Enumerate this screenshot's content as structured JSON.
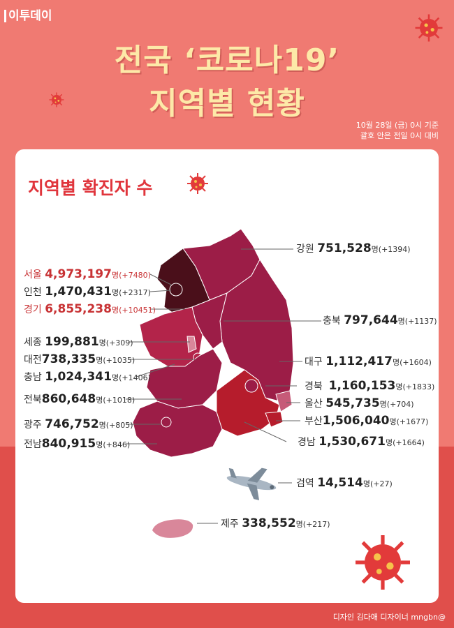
{
  "brand": "이투데이",
  "title_line1": "전국 ‘코로나19’",
  "title_line2": "지역별 현황",
  "date_line1": "10월 28일 (금) 0시 기준",
  "date_line2": "괄호 안은 전일 0시 대비",
  "section_title": "지역별 확진자 수",
  "credit": "디자인 김다애 디자이너 mngbn@",
  "unit": "명",
  "regions": [
    {
      "name": "강원",
      "count": "751,528",
      "change": "(+1394)"
    },
    {
      "name": "서울",
      "count": "4,973,197",
      "change": "(+7480)"
    },
    {
      "name": "인천",
      "count": "1,470,431",
      "change": "(+2317)"
    },
    {
      "name": "경기",
      "count": "6,855,238",
      "change": "(+10451)"
    },
    {
      "name": "충북",
      "count": "797,644",
      "change": "(+1137)"
    },
    {
      "name": "세종",
      "count": "199,881",
      "change": "(+309)"
    },
    {
      "name": "대전",
      "count": "738,335",
      "change": "(+1035)"
    },
    {
      "name": "대구",
      "count": "1,112,417",
      "change": "(+1604)"
    },
    {
      "name": "충남",
      "count": "1,024,341",
      "change": "(+1406)"
    },
    {
      "name": "경북",
      "count": "1,160,153",
      "change": "(+1833)"
    },
    {
      "name": "전북",
      "count": "860,648",
      "change": "(+1018)"
    },
    {
      "name": "울산",
      "count": "545,735",
      "change": "(+704)"
    },
    {
      "name": "부산",
      "count": "1,506,040",
      "change": "(+1677)"
    },
    {
      "name": "광주",
      "count": "746,752",
      "change": "(+805)"
    },
    {
      "name": "경남",
      "count": "1,530,671",
      "change": "(+1664)"
    },
    {
      "name": "전남",
      "count": "840,915",
      "change": "(+846)"
    },
    {
      "name": "검역",
      "count": "14,514",
      "change": "(+27)"
    },
    {
      "name": "제주",
      "count": "338,552",
      "change": "(+217)"
    }
  ],
  "colors": {
    "background": "#f07a72",
    "title": "#fde9a8",
    "highlight": "#c83234",
    "map_dark": "#4a0f1a",
    "map_mid": "#9c1d47",
    "map_light": "#b3244a",
    "map_south": "#b61c2c",
    "jeju": "#d9879a"
  }
}
